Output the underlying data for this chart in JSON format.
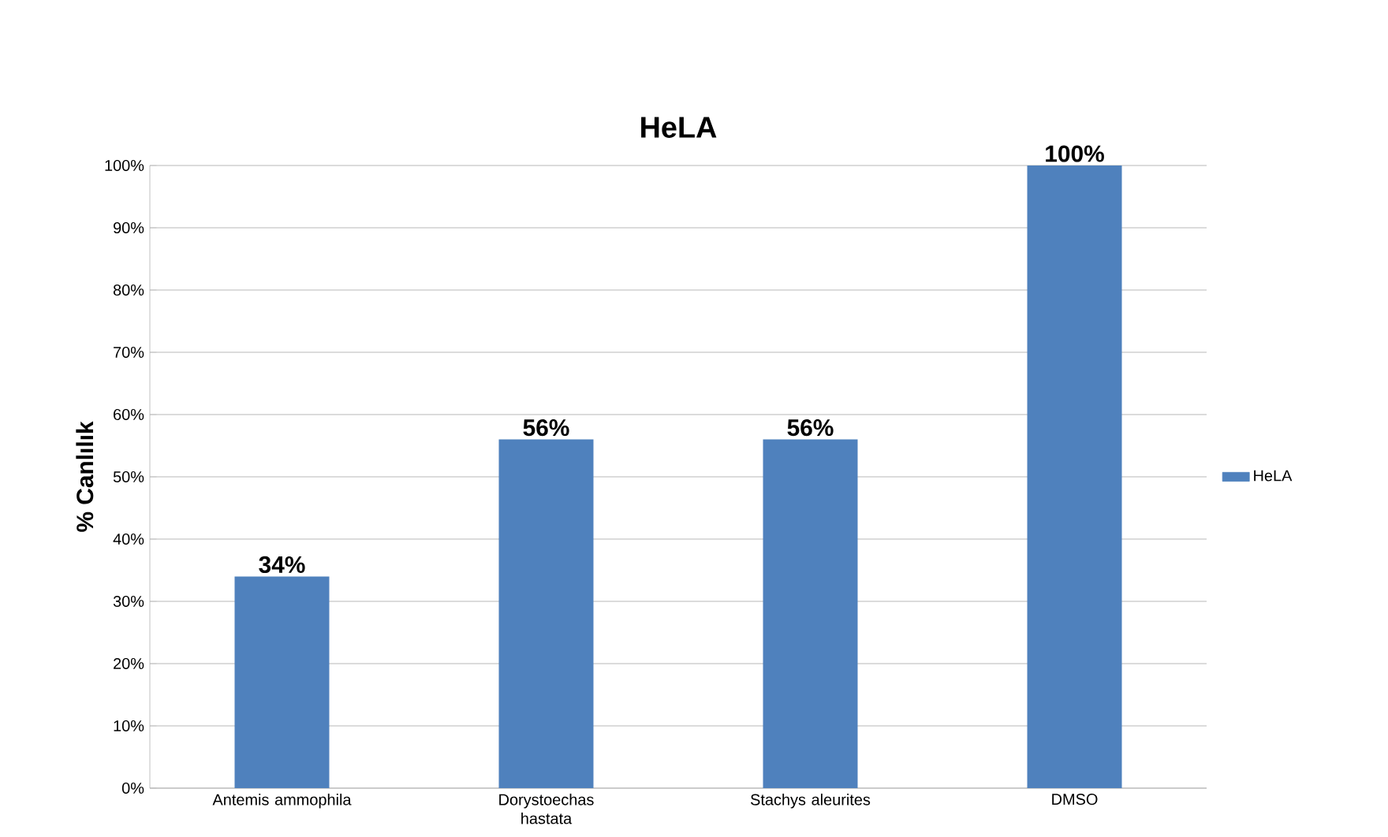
{
  "chart_data": {
    "type": "bar",
    "title": "HeLA",
    "ylabel": "% Canlılık",
    "categories": [
      "Antemis ammophila",
      "Dorystoechas hastata",
      "Stachys aleurites",
      "DMSO"
    ],
    "series": [
      {
        "name": "HeLA",
        "color": "#4f81bd",
        "values": [
          34,
          56,
          56,
          100
        ],
        "value_labels": [
          "34%",
          "56%",
          "56%",
          "100%"
        ]
      }
    ],
    "ylim": [
      0,
      100
    ],
    "yticks": [
      {
        "value": 0,
        "label": "0%"
      },
      {
        "value": 10,
        "label": "10%"
      },
      {
        "value": 20,
        "label": "20%"
      },
      {
        "value": 30,
        "label": "30%"
      },
      {
        "value": 40,
        "label": "40%"
      },
      {
        "value": 50,
        "label": "50%"
      },
      {
        "value": 60,
        "label": "60%"
      },
      {
        "value": 70,
        "label": "70%"
      },
      {
        "value": 80,
        "label": "80%"
      },
      {
        "value": 90,
        "label": "90%"
      },
      {
        "value": 100,
        "label": "100%"
      }
    ],
    "grid": "y",
    "legend": "right"
  }
}
